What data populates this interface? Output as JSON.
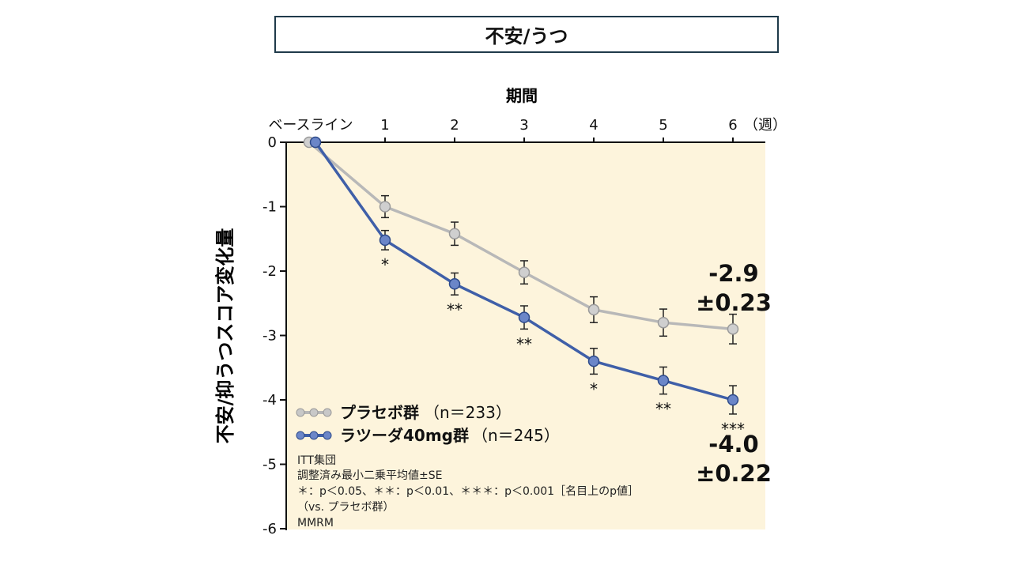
{
  "page_title": "不安/うつ",
  "colors": {
    "placebo": "#b8b8b8",
    "lasutu": "#3f5fa8",
    "plot_bg": "#fdf4dc",
    "title_border": "#1f3a4a"
  },
  "chart_data": {
    "type": "line",
    "title": "期間",
    "xlabel": "期間",
    "ylabel": "不安/抑うつスコア変化量",
    "x_unit": "（週）",
    "categories": [
      "ベースライン",
      "1",
      "2",
      "3",
      "4",
      "5",
      "6"
    ],
    "x": [
      0,
      1,
      2,
      3,
      4,
      5,
      6
    ],
    "ylim": [
      -6,
      0
    ],
    "yticks": [
      "0",
      "-1",
      "-2",
      "-3",
      "-4",
      "-5",
      "-6"
    ],
    "series": [
      {
        "name": "プラセボ群",
        "n_label": "（n＝233）",
        "color": "#b8b8b8",
        "values": [
          0,
          -1.0,
          -1.42,
          -2.02,
          -2.6,
          -2.8,
          -2.9
        ],
        "errors": [
          0,
          0.17,
          0.18,
          0.18,
          0.2,
          0.21,
          0.23
        ]
      },
      {
        "name": "ラツーダ40mg群",
        "n_label": "（n＝245）",
        "color": "#3f5fa8",
        "values": [
          0,
          -1.52,
          -2.2,
          -2.72,
          -3.4,
          -3.7,
          -4.0
        ],
        "errors": [
          0,
          0.15,
          0.17,
          0.18,
          0.2,
          0.21,
          0.22
        ]
      }
    ],
    "significance": [
      {
        "x": 1,
        "label": "*"
      },
      {
        "x": 2,
        "label": "**"
      },
      {
        "x": 3,
        "label": "**"
      },
      {
        "x": 4,
        "label": "*"
      },
      {
        "x": 5,
        "label": "**"
      },
      {
        "x": 6,
        "label": "***"
      }
    ],
    "annotations": {
      "placebo_value": "-2.9",
      "placebo_se": "±0.23",
      "lasutu_value": "-4.0",
      "lasutu_se": "±0.22"
    },
    "notes": [
      "ITT集団",
      "調整済み最小二乗平均値±SE",
      "＊：p＜0.05、＊＊：p＜0.01、＊＊＊：p＜0.001［名目上のp値］",
      "（vs. プラセボ群）",
      "MMRM"
    ]
  }
}
